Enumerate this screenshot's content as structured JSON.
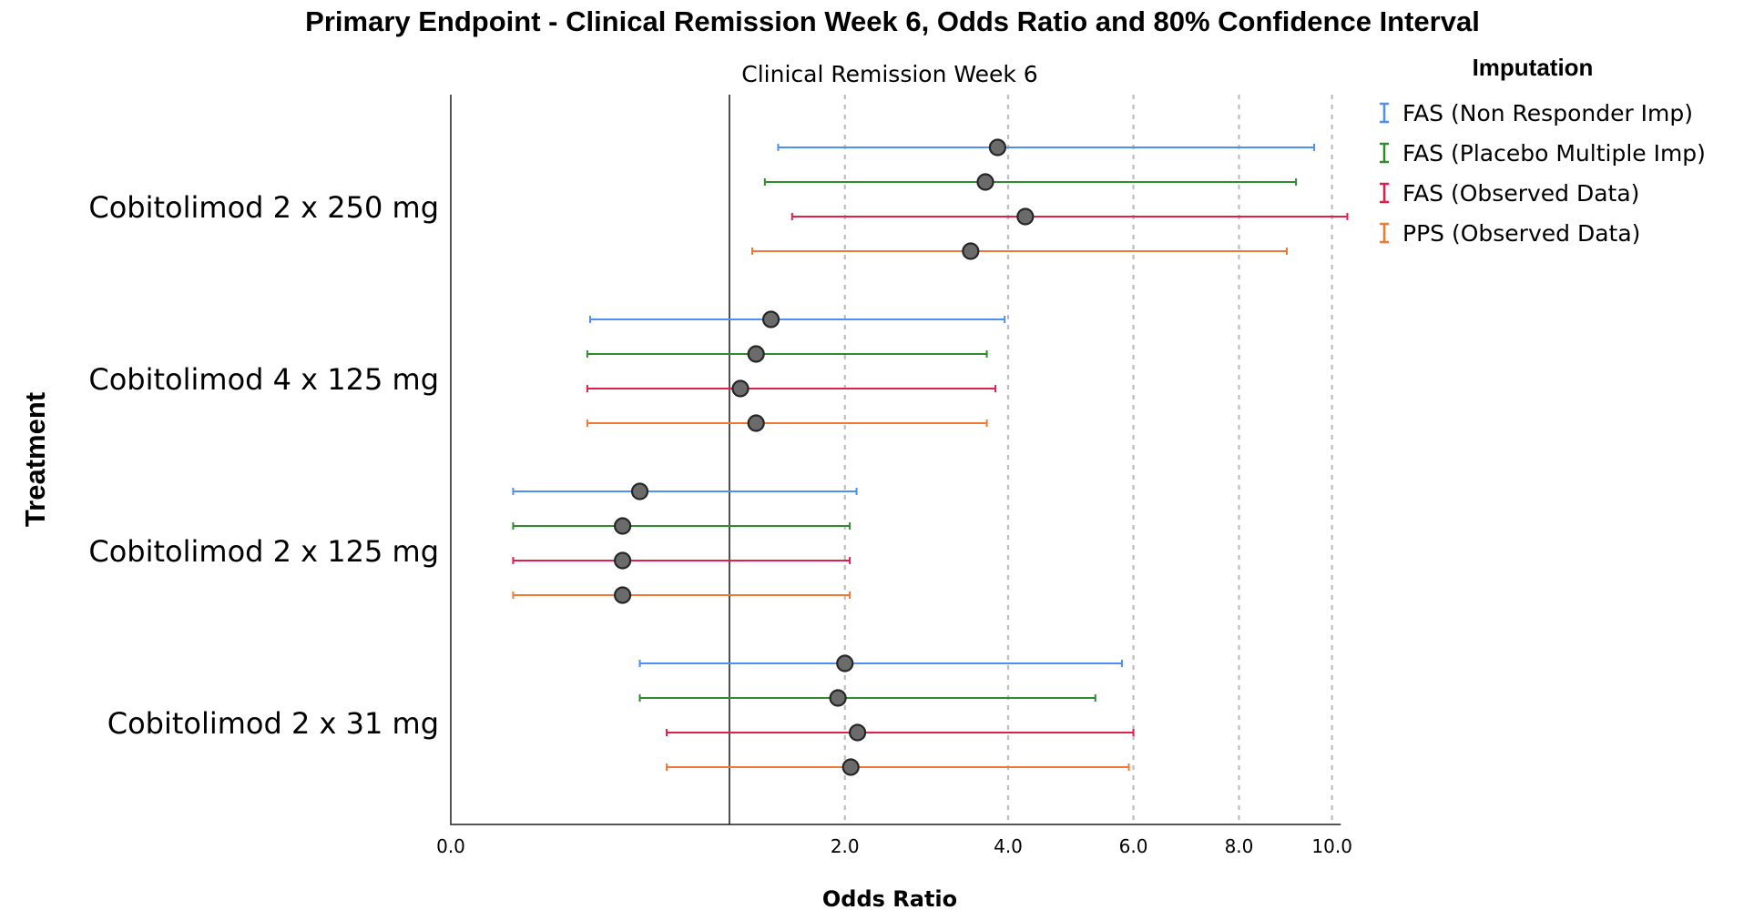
{
  "chart_data": {
    "type": "errorbar",
    "title": "Primary Endpoint - Clinical Remission Week 6, Odds Ratio and 80% Confidence Interval",
    "subtitle": "Clinical Remission Week 6",
    "xlabel": "Odds Ratio",
    "ylabel": "Treatment",
    "x_scale": "sqrt",
    "xlim": [
      0,
      10.2
    ],
    "x_ticks": [
      "0.0",
      "2.0",
      "4.0",
      "6.0",
      "8.0",
      "10.0"
    ],
    "x_tick_values": [
      0,
      2,
      4,
      6,
      8,
      10
    ],
    "x_gridlines": [
      2,
      4,
      6,
      8,
      10
    ],
    "reference_line": 1,
    "legend": {
      "title": "Imputation",
      "position": "top-right"
    },
    "categories": [
      "Cobitolimod 2 x 250 mg",
      "Cobitolimod 4 x 125 mg",
      "Cobitolimod 2 x 125 mg",
      "Cobitolimod 2 x 31 mg"
    ],
    "series": [
      {
        "name": "FAS (Non Responder Imp)",
        "color": "#4e8ff2",
        "points": [
          {
            "or": 3.85,
            "lower": 1.38,
            "upper": 9.6
          },
          {
            "or": 1.32,
            "lower": 0.25,
            "upper": 3.95
          },
          {
            "or": 0.46,
            "lower": 0.05,
            "upper": 2.12
          },
          {
            "or": 2.0,
            "lower": 0.46,
            "upper": 5.8
          }
        ]
      },
      {
        "name": "FAS (Placebo Multiple Imp)",
        "color": "#2e8b2e",
        "points": [
          {
            "or": 3.68,
            "lower": 1.27,
            "upper": 9.2
          },
          {
            "or": 1.2,
            "lower": 0.24,
            "upper": 3.7
          },
          {
            "or": 0.38,
            "lower": 0.05,
            "upper": 2.05
          },
          {
            "or": 1.93,
            "lower": 0.46,
            "upper": 5.35
          }
        ]
      },
      {
        "name": "FAS (Observed Data)",
        "color": "#e0204a",
        "points": [
          {
            "or": 4.25,
            "lower": 1.5,
            "upper": 10.35
          },
          {
            "or": 1.08,
            "lower": 0.24,
            "upper": 3.82
          },
          {
            "or": 0.38,
            "lower": 0.05,
            "upper": 2.05
          },
          {
            "or": 2.13,
            "lower": 0.6,
            "upper": 6.0
          }
        ]
      },
      {
        "name": "PPS (Observed Data)",
        "color": "#f07830",
        "points": [
          {
            "or": 3.48,
            "lower": 1.17,
            "upper": 9.0
          },
          {
            "or": 1.2,
            "lower": 0.24,
            "upper": 3.7
          },
          {
            "or": 0.38,
            "lower": 0.05,
            "upper": 2.05
          },
          {
            "or": 2.06,
            "lower": 0.6,
            "upper": 5.92
          }
        ]
      }
    ]
  }
}
